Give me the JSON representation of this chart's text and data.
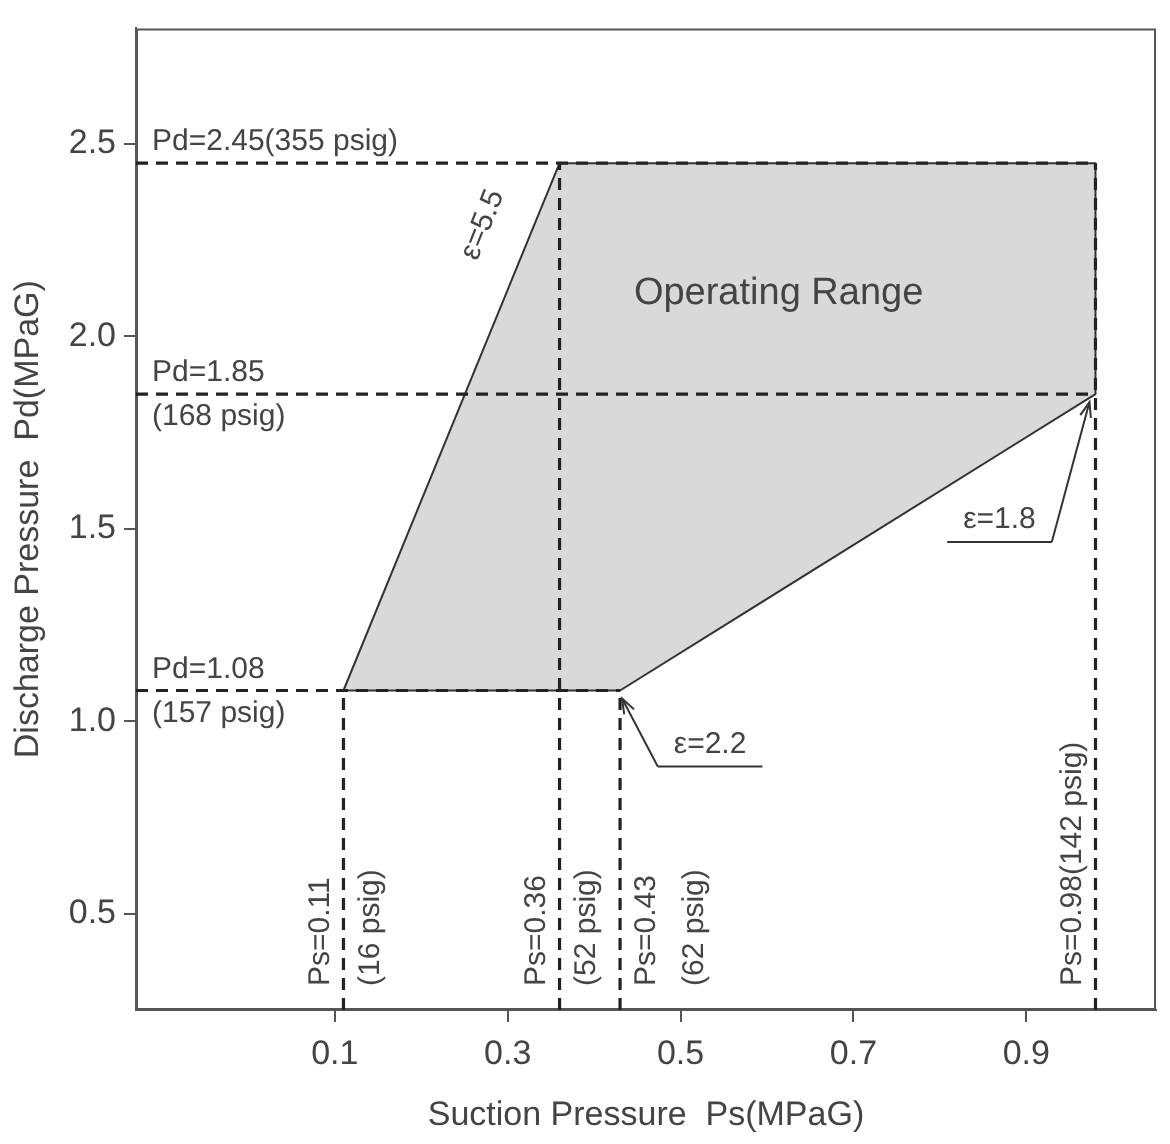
{
  "chart_data": {
    "type": "area",
    "xlabel": "Suction Pressure  Ps(MPaG)",
    "ylabel": "Discharge Pressure  Pd(MPaG)",
    "series": [
      {
        "color": "#d9d9d9",
        "x": [
          0.11,
          0.36,
          0.98,
          0.98,
          0.43,
          0.11
        ],
        "values": [
          1.08,
          2.45,
          2.45,
          1.85,
          1.08,
          1.08
        ]
      }
    ],
    "xlim": [
      -0.13,
      1.05
    ],
    "xticks": [
      0.1,
      0.3,
      0.5,
      0.7,
      0.9
    ],
    "ylim": [
      0.25,
      2.8
    ],
    "yticks": [
      0.5,
      {
        "value": 1.0,
        "label": "1.0"
      },
      1.5,
      {
        "value": 2.0,
        "label": "2.0"
      },
      2.5
    ],
    "ref_lines": [
      {
        "axis": "y",
        "value": 2.45,
        "label": "Pd=2.45(355 psig)",
        "line_style": "dashed"
      },
      {
        "axis": "y",
        "value": 1.85,
        "label": "Pd=1.85\n(168 psig)",
        "line_style": "dashed"
      },
      {
        "axis": "y",
        "value": 1.08,
        "label": "Pd=1.08\n(157 psig)",
        "line_style": "dashed"
      },
      {
        "axis": "x",
        "value": 0.11,
        "label": "Ps=0.11\n(16 psig)",
        "line_style": "dashed"
      },
      {
        "axis": "x",
        "value": 0.36,
        "label": "Ps=0.36\n(52 psig)",
        "line_style": "dashed"
      },
      {
        "axis": "x",
        "value": 0.43,
        "label": "Ps=0.43\n(62 psig)",
        "line_style": "dashed"
      },
      {
        "axis": "x",
        "value": 0.98,
        "label": "Ps=0.98(142 psig)",
        "line_style": "dashed"
      }
    ],
    "annotations": [
      "Operating Range",
      "ε=5.5",
      {
        "text": "ε=1.8",
        "x": 0.98,
        "y": 1.85
      },
      {
        "text": "ε=2.2",
        "x": 0.43,
        "y": 1.08
      }
    ],
    "grid": false,
    "legend": false
  }
}
